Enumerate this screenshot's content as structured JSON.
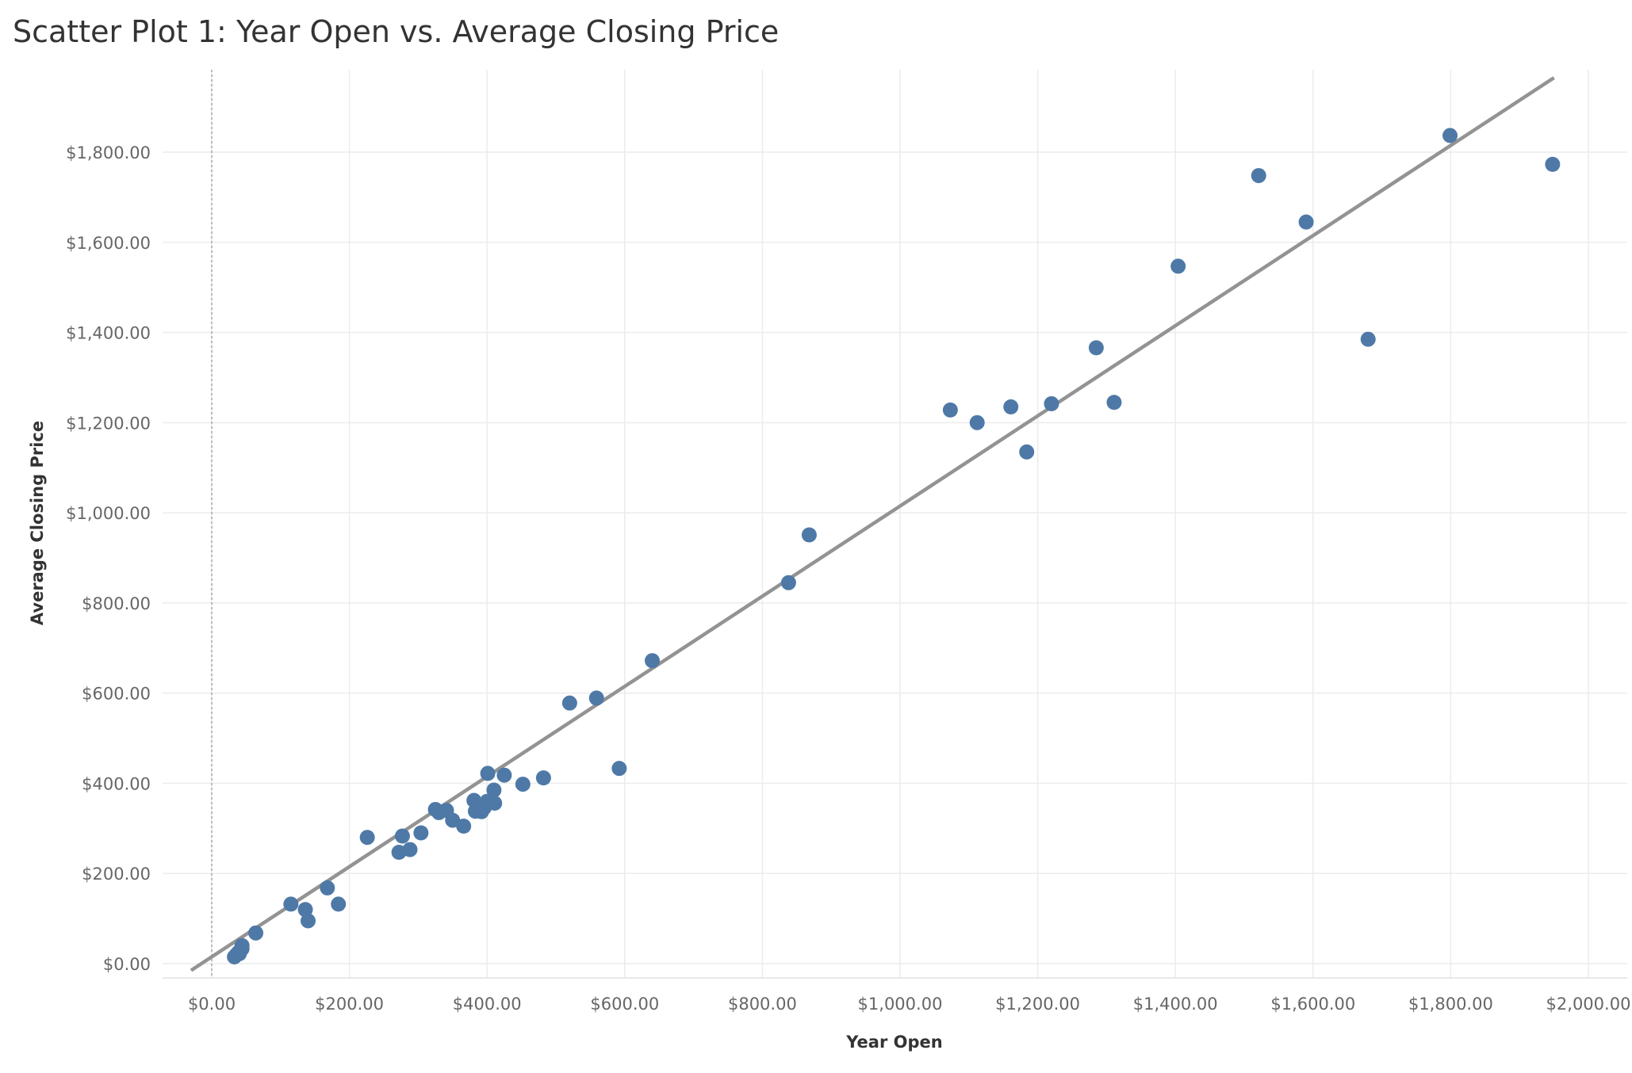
{
  "chart_data": {
    "type": "scatter",
    "title": "Scatter Plot 1: Year Open vs. Average Closing Price",
    "xlabel": "Year Open",
    "ylabel": "Average Closing Price",
    "xlim": [
      -70,
      2050
    ],
    "ylim": [
      -30,
      1975
    ],
    "x_ticks": [
      0,
      200,
      400,
      600,
      800,
      1000,
      1200,
      1400,
      1600,
      1800,
      2000
    ],
    "x_tick_labels": [
      "$0.00",
      "$200.00",
      "$400.00",
      "$600.00",
      "$800.00",
      "$1,000.00",
      "$1,200.00",
      "$1,400.00",
      "$1,600.00",
      "$1,800.00",
      "$2,000.00"
    ],
    "y_ticks": [
      0,
      200,
      400,
      600,
      800,
      1000,
      1200,
      1400,
      1600,
      1800
    ],
    "y_tick_labels": [
      "$0.00",
      "$200.00",
      "$400.00",
      "$600.00",
      "$800.00",
      "$1,000.00",
      "$1,200.00",
      "$1,400.00",
      "$1,600.00",
      "$1,800.00"
    ],
    "grid": true,
    "trend_line": {
      "slope": 1.0,
      "intercept": 15
    },
    "marker_color": "#4e79a7",
    "trend_color": "#939393",
    "points": [
      {
        "x": 33,
        "y": 15
      },
      {
        "x": 36,
        "y": 20
      },
      {
        "x": 39,
        "y": 25
      },
      {
        "x": 40,
        "y": 22
      },
      {
        "x": 42,
        "y": 30
      },
      {
        "x": 44,
        "y": 33
      },
      {
        "x": 44,
        "y": 40
      },
      {
        "x": 64,
        "y": 68
      },
      {
        "x": 115,
        "y": 132
      },
      {
        "x": 136,
        "y": 120
      },
      {
        "x": 140,
        "y": 95
      },
      {
        "x": 168,
        "y": 168
      },
      {
        "x": 184,
        "y": 132
      },
      {
        "x": 226,
        "y": 280
      },
      {
        "x": 272,
        "y": 247
      },
      {
        "x": 277,
        "y": 283
      },
      {
        "x": 288,
        "y": 253
      },
      {
        "x": 304,
        "y": 290
      },
      {
        "x": 325,
        "y": 342
      },
      {
        "x": 330,
        "y": 335
      },
      {
        "x": 341,
        "y": 340
      },
      {
        "x": 350,
        "y": 318
      },
      {
        "x": 366,
        "y": 305
      },
      {
        "x": 381,
        "y": 362
      },
      {
        "x": 383,
        "y": 338
      },
      {
        "x": 388,
        "y": 345
      },
      {
        "x": 392,
        "y": 337
      },
      {
        "x": 396,
        "y": 346
      },
      {
        "x": 400,
        "y": 360
      },
      {
        "x": 401,
        "y": 422
      },
      {
        "x": 410,
        "y": 385
      },
      {
        "x": 411,
        "y": 356
      },
      {
        "x": 425,
        "y": 418
      },
      {
        "x": 452,
        "y": 398
      },
      {
        "x": 482,
        "y": 412
      },
      {
        "x": 520,
        "y": 578
      },
      {
        "x": 559,
        "y": 589
      },
      {
        "x": 592,
        "y": 433
      },
      {
        "x": 640,
        "y": 672
      },
      {
        "x": 838,
        "y": 845
      },
      {
        "x": 868,
        "y": 951
      },
      {
        "x": 1073,
        "y": 1228
      },
      {
        "x": 1112,
        "y": 1200
      },
      {
        "x": 1161,
        "y": 1235
      },
      {
        "x": 1184,
        "y": 1135
      },
      {
        "x": 1220,
        "y": 1242
      },
      {
        "x": 1285,
        "y": 1366
      },
      {
        "x": 1311,
        "y": 1245
      },
      {
        "x": 1404,
        "y": 1547
      },
      {
        "x": 1521,
        "y": 1748
      },
      {
        "x": 1590,
        "y": 1645
      },
      {
        "x": 1680,
        "y": 1385
      },
      {
        "x": 1799,
        "y": 1837
      },
      {
        "x": 1948,
        "y": 1773
      }
    ]
  }
}
